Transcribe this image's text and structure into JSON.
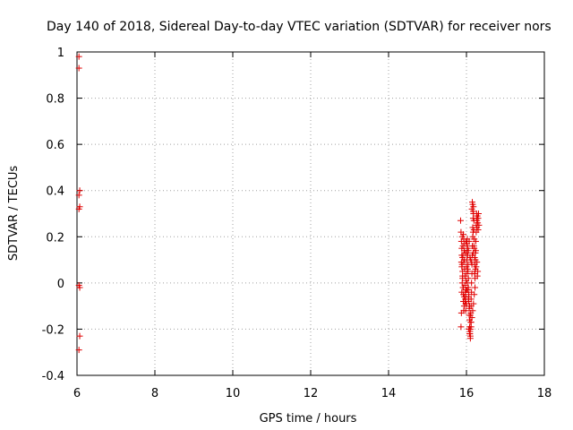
{
  "chart_data": {
    "type": "scatter",
    "title": "Day 140 of 2018, Sidereal Day-to-day VTEC variation (SDTVAR) for receiver nors",
    "xlabel": "GPS time / hours",
    "ylabel": "SDTVAR / TECUs",
    "xlim": [
      6,
      18
    ],
    "ylim": [
      -0.4,
      1
    ],
    "xticks": [
      "6",
      "8",
      "10",
      "12",
      "14",
      "16",
      "18"
    ],
    "yticks": [
      "-0.4",
      "-0.2",
      "0",
      "0.2",
      "0.4",
      "0.6",
      "0.8",
      "1"
    ],
    "grid": true,
    "marker": "+",
    "series": [
      {
        "name": "SDTVAR",
        "color": "#e00000",
        "points": [
          [
            6.05,
            0.98
          ],
          [
            6.05,
            0.93
          ],
          [
            6.07,
            0.4
          ],
          [
            6.05,
            0.38
          ],
          [
            6.07,
            0.33
          ],
          [
            6.05,
            0.32
          ],
          [
            6.05,
            -0.01
          ],
          [
            6.07,
            -0.02
          ],
          [
            6.07,
            -0.23
          ],
          [
            6.05,
            -0.29
          ],
          [
            15.85,
            0.27
          ],
          [
            15.86,
            0.22
          ],
          [
            15.87,
            0.18
          ],
          [
            15.88,
            0.15
          ],
          [
            15.88,
            0.12
          ],
          [
            15.89,
            0.08
          ],
          [
            15.9,
            0.05
          ],
          [
            15.9,
            0.02
          ],
          [
            15.91,
            -0.02
          ],
          [
            15.92,
            -0.05
          ],
          [
            15.92,
            -0.08
          ],
          [
            15.93,
            -0.12
          ],
          [
            15.86,
            -0.19
          ],
          [
            15.87,
            -0.13
          ],
          [
            15.88,
            -0.04
          ],
          [
            15.89,
            0.0
          ],
          [
            15.9,
            0.11
          ],
          [
            15.91,
            0.16
          ],
          [
            15.92,
            0.21
          ],
          [
            15.93,
            0.19
          ],
          [
            15.94,
            0.14
          ],
          [
            15.95,
            0.1
          ],
          [
            15.95,
            0.06
          ],
          [
            15.96,
            0.03
          ],
          [
            15.96,
            -0.01
          ],
          [
            15.97,
            -0.04
          ],
          [
            15.97,
            -0.07
          ],
          [
            15.98,
            -0.09
          ],
          [
            15.98,
            -0.06
          ],
          [
            15.99,
            -0.03
          ],
          [
            15.99,
            0.01
          ],
          [
            16.0,
            0.04
          ],
          [
            16.0,
            0.07
          ],
          [
            16.01,
            0.1
          ],
          [
            16.01,
            0.13
          ],
          [
            16.02,
            0.16
          ],
          [
            16.02,
            0.19
          ],
          [
            16.03,
            0.15
          ],
          [
            16.03,
            0.12
          ],
          [
            16.04,
            0.08
          ],
          [
            16.04,
            0.05
          ],
          [
            16.05,
            0.02
          ],
          [
            16.05,
            -0.02
          ],
          [
            16.06,
            -0.05
          ],
          [
            16.06,
            -0.08
          ],
          [
            16.07,
            -0.11
          ],
          [
            16.07,
            -0.14
          ],
          [
            16.08,
            -0.16
          ],
          [
            16.08,
            -0.19
          ],
          [
            16.09,
            -0.21
          ],
          [
            16.09,
            -0.22
          ],
          [
            16.1,
            -0.23
          ],
          [
            16.1,
            -0.2
          ],
          [
            16.11,
            -0.17
          ],
          [
            16.11,
            -0.13
          ],
          [
            16.12,
            -0.1
          ],
          [
            16.12,
            -0.07
          ],
          [
            16.13,
            -0.04
          ],
          [
            16.13,
            0.0
          ],
          [
            16.14,
            0.04
          ],
          [
            16.14,
            0.08
          ],
          [
            16.15,
            0.12
          ],
          [
            16.15,
            0.16
          ],
          [
            16.16,
            0.2
          ],
          [
            16.16,
            0.24
          ],
          [
            16.17,
            0.28
          ],
          [
            16.17,
            0.31
          ],
          [
            16.18,
            0.33
          ],
          [
            16.18,
            0.3
          ],
          [
            16.19,
            0.27
          ],
          [
            16.19,
            0.23
          ],
          [
            16.2,
            0.19
          ],
          [
            16.2,
            0.15
          ],
          [
            16.21,
            0.11
          ],
          [
            16.21,
            0.08
          ],
          [
            16.22,
            0.05
          ],
          [
            16.22,
            0.02
          ],
          [
            16.23,
            0.06
          ],
          [
            16.23,
            0.1
          ],
          [
            16.24,
            0.14
          ],
          [
            16.24,
            0.18
          ],
          [
            16.25,
            0.22
          ],
          [
            16.25,
            0.25
          ],
          [
            16.26,
            0.28
          ],
          [
            16.26,
            0.3
          ],
          [
            16.27,
            0.27
          ],
          [
            16.27,
            0.24
          ],
          [
            16.28,
            0.29
          ],
          [
            16.29,
            0.26
          ],
          [
            16.3,
            0.23
          ],
          [
            16.3,
            0.28
          ],
          [
            16.31,
            0.3
          ],
          [
            16.32,
            0.25
          ],
          [
            16.22,
            -0.02
          ],
          [
            16.2,
            -0.05
          ],
          [
            16.18,
            -0.09
          ],
          [
            16.16,
            -0.12
          ],
          [
            16.14,
            -0.15
          ],
          [
            16.12,
            -0.17
          ],
          [
            16.1,
            -0.14
          ],
          [
            16.08,
            -0.1
          ],
          [
            16.06,
            -0.06
          ],
          [
            16.04,
            -0.03
          ],
          [
            16.02,
            0.0
          ],
          [
            16.0,
            -0.09
          ],
          [
            15.98,
            -0.12
          ],
          [
            15.96,
            -0.08
          ],
          [
            15.94,
            -0.06
          ],
          [
            15.92,
            -0.02
          ],
          [
            15.9,
            0.03
          ],
          [
            15.88,
            0.07
          ],
          [
            15.93,
            0.09
          ],
          [
            15.97,
            0.13
          ],
          [
            16.01,
            0.17
          ],
          [
            16.05,
            0.14
          ],
          [
            16.09,
            0.11
          ],
          [
            16.13,
            0.09
          ],
          [
            16.17,
            0.13
          ],
          [
            16.21,
            0.04
          ],
          [
            16.25,
            0.07
          ],
          [
            16.28,
            0.03
          ],
          [
            16.27,
            0.09
          ],
          [
            16.29,
            0.05
          ],
          [
            16.23,
            0.13
          ],
          [
            16.19,
            0.16
          ],
          [
            16.15,
            0.35
          ],
          [
            16.16,
            0.34
          ],
          [
            16.14,
            0.32
          ],
          [
            16.17,
            0.22
          ],
          [
            16.11,
            0.1
          ],
          [
            16.07,
            0.18
          ],
          [
            16.03,
            0.06
          ],
          [
            15.99,
            0.18
          ],
          [
            15.95,
            0.17
          ],
          [
            15.91,
            0.12
          ],
          [
            15.89,
            0.2
          ],
          [
            15.87,
            0.09
          ],
          [
            15.94,
            -0.1
          ],
          [
            16.06,
            -0.2
          ],
          [
            16.08,
            -0.22
          ],
          [
            16.1,
            -0.24
          ],
          [
            16.12,
            -0.19
          ],
          [
            16.05,
            -0.07
          ],
          [
            16.01,
            -0.03
          ]
        ]
      }
    ]
  }
}
